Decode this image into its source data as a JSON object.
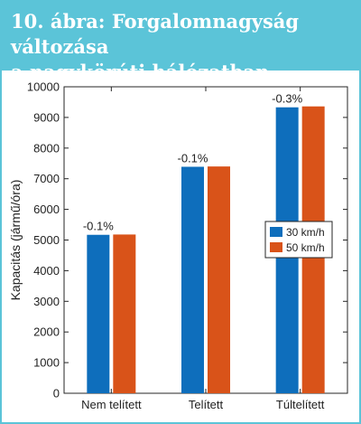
{
  "header": {
    "title_line1": "10. ábra: Forgalomnagyság változása",
    "title_line2": "a nagykörúti hálózatban"
  },
  "colors": {
    "header_bg": "#5bc4d8",
    "series1": "#0e6ebc",
    "series2": "#d95319"
  },
  "chart_data": {
    "type": "bar",
    "categories": [
      "Nem telített",
      "Telített",
      "Túltelített"
    ],
    "series": [
      {
        "name": "30 km/h",
        "values": [
          5170,
          7390,
          9330
        ],
        "color": "#0e6ebc"
      },
      {
        "name": "50 km/h",
        "values": [
          5180,
          7400,
          9360
        ],
        "color": "#d95319"
      }
    ],
    "annotations": [
      "-0.1%",
      "-0.1%",
      "-0.3%"
    ],
    "ylabel": "Kapacitás (jármű/óra)",
    "xlabel": "",
    "ylim": [
      0,
      10000
    ],
    "yticks": [
      0,
      1000,
      2000,
      3000,
      4000,
      5000,
      6000,
      7000,
      8000,
      9000,
      10000
    ],
    "legend_position": "right",
    "grid": false
  }
}
